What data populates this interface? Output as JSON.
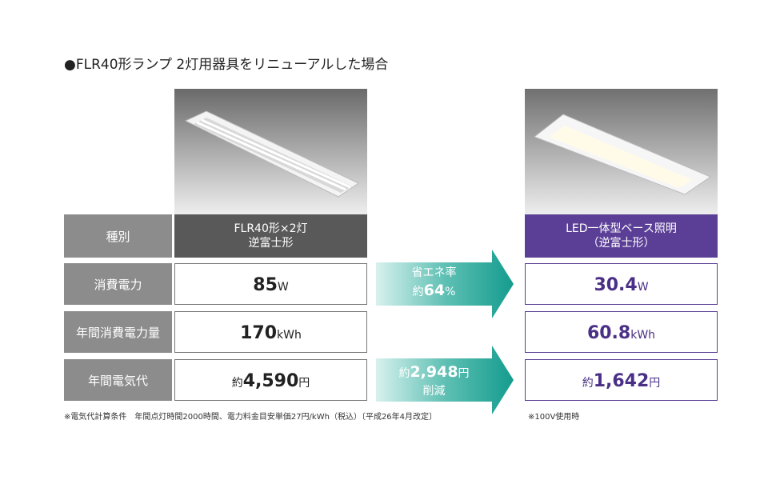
{
  "title": "●FLR40形ランプ 2灯用器具をリニューアルした場合",
  "table": {
    "header": {
      "label": "種別",
      "before": [
        "FLR40形×2灯",
        "逆富士形"
      ],
      "after": [
        "LED一体型ベース照明",
        "（逆富士形）"
      ]
    },
    "rows": [
      {
        "label": "消費電力",
        "before": {
          "number": "85",
          "unit": "W"
        },
        "after": {
          "number": "30.4",
          "unit": "W"
        }
      },
      {
        "label": "年間消費電力量",
        "before": {
          "number": "170",
          "unit": "kWh"
        },
        "after": {
          "number": "60.8",
          "unit": "kWh"
        }
      },
      {
        "label": "年間電気代",
        "before": {
          "prefix": "約",
          "number": "4,590",
          "unit": "円"
        },
        "after": {
          "prefix": "約",
          "number": "1,642",
          "unit": "円"
        }
      }
    ]
  },
  "arrows": [
    {
      "caption": "省エネ率",
      "prefix": "約",
      "number": "64",
      "unit": "%"
    },
    {
      "prefix": "約",
      "number": "2,948",
      "unit": "円",
      "caption": "削減"
    }
  ],
  "notes": {
    "left": "※電気代計算条件　年間点灯時間2000時間、電力料金目安単価27円/kWh（税込）〔平成26年4月改定〕",
    "right": "※100V使用時"
  }
}
